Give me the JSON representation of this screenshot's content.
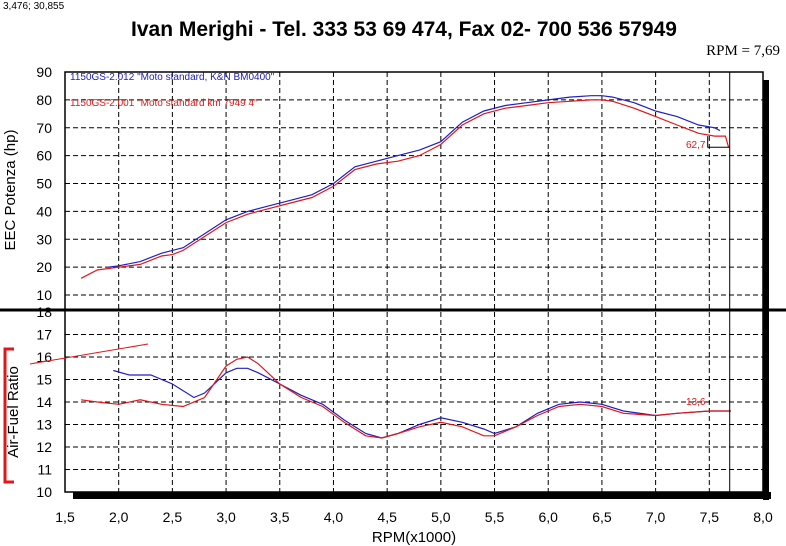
{
  "header": {
    "coords": "3,476; 30,855",
    "title": "Ivan Merighi - Tel. 333  53 69 474, Fax 02- 700 536 57949",
    "rpm_readout": "RPM = 7,69"
  },
  "colors": {
    "series_a": "#2020c0",
    "series_b": "#e01818",
    "frame": "#000000",
    "grid": "#000000"
  },
  "chart_data": [
    {
      "type": "line",
      "title": "",
      "xlabel": "RPM(x1000)",
      "ylabel": "EEC Potenza (hp)",
      "xlim": [
        1.5,
        8.0
      ],
      "ylim": [
        5,
        90
      ],
      "grid": true,
      "legend": "top-left",
      "end_label": "62,7",
      "series": [
        {
          "name": "1150GS-2.012   \"Moto standard, K&N BM0400\"",
          "color": "#2020c0",
          "x": [
            1.9,
            2.0,
            2.2,
            2.4,
            2.5,
            2.6,
            2.8,
            3.0,
            3.2,
            3.4,
            3.6,
            3.8,
            4.0,
            4.2,
            4.4,
            4.6,
            4.8,
            5.0,
            5.2,
            5.4,
            5.6,
            5.8,
            6.0,
            6.2,
            6.4,
            6.5,
            6.6,
            6.8,
            7.0,
            7.2,
            7.4,
            7.55,
            7.6
          ],
          "y": [
            20,
            20.5,
            22,
            25,
            26,
            27,
            32,
            37,
            40,
            42,
            44,
            46,
            50,
            56,
            58,
            60,
            62,
            65,
            72,
            76,
            78,
            79,
            80,
            81,
            81.5,
            81.5,
            81,
            79,
            76,
            74,
            71,
            70,
            69
          ]
        },
        {
          "name": "1150GS-2.001   \"Moto standard km 7949 4\"",
          "color": "#e01818",
          "x": [
            1.65,
            1.8,
            2.0,
            2.2,
            2.4,
            2.5,
            2.6,
            2.8,
            3.0,
            3.2,
            3.4,
            3.6,
            3.8,
            4.0,
            4.2,
            4.4,
            4.6,
            4.8,
            5.0,
            5.2,
            5.4,
            5.6,
            5.8,
            6.0,
            6.2,
            6.4,
            6.5,
            6.6,
            6.8,
            7.0,
            7.2,
            7.4,
            7.55,
            7.65,
            7.68
          ],
          "y": [
            16,
            19,
            20,
            21,
            24,
            24.5,
            26,
            31,
            36,
            39,
            41,
            43,
            45,
            49,
            55,
            57,
            58,
            60,
            64,
            71,
            75,
            77,
            78,
            79,
            79.5,
            80,
            80,
            79.5,
            77,
            74,
            71,
            68,
            67,
            67,
            63
          ]
        }
      ]
    },
    {
      "type": "line",
      "title": "",
      "xlabel": "RPM(x1000)",
      "ylabel": "Air-Fuel Ratio",
      "xlim": [
        1.5,
        8.0
      ],
      "ylim": [
        10,
        18
      ],
      "grid": true,
      "end_label": "13,6",
      "series": [
        {
          "name": "1150GS-2.012",
          "color": "#2020c0",
          "x": [
            1.95,
            2.1,
            2.3,
            2.5,
            2.7,
            2.8,
            3.0,
            3.1,
            3.2,
            3.3,
            3.5,
            3.7,
            3.9,
            4.1,
            4.3,
            4.45,
            4.6,
            4.8,
            5.0,
            5.2,
            5.4,
            5.5,
            5.7,
            5.9,
            6.1,
            6.3,
            6.5,
            6.7,
            7.0,
            7.2,
            7.5,
            7.7
          ],
          "y": [
            15.4,
            15.2,
            15.2,
            14.8,
            14.2,
            14.4,
            15.3,
            15.5,
            15.5,
            15.3,
            14.8,
            14.3,
            13.9,
            13.2,
            12.6,
            12.4,
            12.6,
            13.0,
            13.3,
            13.1,
            12.8,
            12.6,
            12.9,
            13.5,
            13.9,
            14.0,
            13.9,
            13.6,
            13.4,
            13.5,
            13.6,
            13.6
          ]
        },
        {
          "name": "1150GS-2.001",
          "color": "#e01818",
          "x": [
            1.65,
            1.8,
            2.0,
            2.2,
            2.4,
            2.6,
            2.8,
            3.0,
            3.1,
            3.2,
            3.3,
            3.5,
            3.7,
            3.9,
            4.1,
            4.3,
            4.45,
            4.6,
            4.8,
            5.0,
            5.2,
            5.4,
            5.5,
            5.7,
            5.9,
            6.1,
            6.3,
            6.5,
            6.7,
            7.0,
            7.2,
            7.5,
            7.7
          ],
          "y": [
            14.1,
            14.0,
            13.9,
            14.1,
            13.9,
            13.8,
            14.2,
            15.6,
            15.9,
            16.0,
            15.7,
            14.8,
            14.2,
            13.8,
            13.1,
            12.5,
            12.4,
            12.6,
            12.9,
            13.1,
            12.9,
            12.5,
            12.5,
            12.9,
            13.4,
            13.8,
            13.9,
            13.8,
            13.5,
            13.4,
            13.5,
            13.6,
            13.6
          ]
        }
      ]
    }
  ]
}
